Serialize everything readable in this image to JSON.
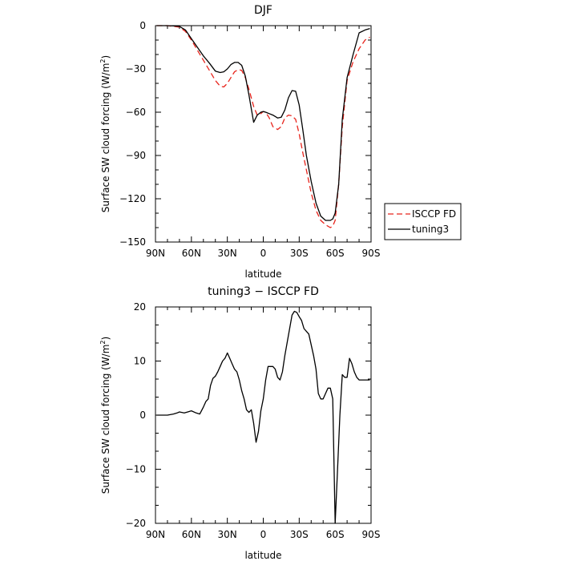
{
  "chart_data": [
    {
      "type": "line",
      "title": "DJF",
      "xlabel": "latitude",
      "ylabel": "Surface SW cloud forcing (W/m",
      "ylabel_sup": "2",
      "ylabel_end": ")",
      "xlim": [
        90,
        -90
      ],
      "ylim": [
        -150,
        0
      ],
      "x_ticks": [
        90,
        60,
        30,
        0,
        -30,
        -60,
        -90
      ],
      "x_tick_labels": [
        "90N",
        "60N",
        "30N",
        "0",
        "30S",
        "60S",
        "90S"
      ],
      "y_ticks": [
        0,
        -30,
        -60,
        -90,
        -120,
        -150
      ],
      "y_tick_labels": [
        "0",
        "−30",
        "−60",
        "−90",
        "−120",
        "−150"
      ],
      "legend_position": "right",
      "series": [
        {
          "name": "ISCCP FD",
          "color": "#e8241c",
          "dash": "dashed",
          "x": [
            89,
            85,
            80,
            75,
            70,
            65,
            60,
            55,
            50,
            45,
            40,
            36,
            33,
            30,
            27,
            24,
            21,
            18,
            15,
            12,
            8,
            5,
            2,
            0,
            -2,
            -5,
            -8,
            -12,
            -15,
            -18,
            -21,
            -24,
            -27,
            -30,
            -33,
            -36,
            -40,
            -44,
            -48,
            -52,
            -56,
            -58,
            -60,
            -63,
            -66,
            -70,
            -75,
            -80,
            -85,
            -89
          ],
          "y": [
            0,
            0,
            0,
            -0.5,
            -1,
            -4,
            -10,
            -17,
            -24,
            -31,
            -38,
            -42,
            -42.5,
            -40,
            -36,
            -32,
            -30.5,
            -31,
            -36,
            -44,
            -56,
            -62,
            -61,
            -59.5,
            -60,
            -64,
            -70,
            -72,
            -70,
            -64,
            -62,
            -62.5,
            -65,
            -75,
            -88,
            -100,
            -116,
            -128,
            -135,
            -138,
            -140,
            -139,
            -135,
            -110,
            -70,
            -38,
            -25,
            -16,
            -10,
            -8
          ]
        },
        {
          "name": "tuning3",
          "color": "#000000",
          "dash": "solid",
          "x": [
            89,
            85,
            80,
            75,
            70,
            65,
            60,
            55,
            50,
            45,
            40,
            36,
            33,
            30,
            27,
            24,
            21,
            18,
            15,
            12,
            8,
            5,
            2,
            0,
            -2,
            -5,
            -8,
            -12,
            -15,
            -18,
            -21,
            -24,
            -27,
            -30,
            -33,
            -36,
            -40,
            -44,
            -48,
            -52,
            -56,
            -58,
            -60,
            -63,
            -66,
            -70,
            -75,
            -80,
            -85,
            -89
          ],
          "y": [
            0,
            0,
            0,
            -0.2,
            -0.5,
            -3,
            -9,
            -15,
            -21,
            -26,
            -31.5,
            -32.5,
            -32,
            -30,
            -27,
            -25.5,
            -25.5,
            -27.5,
            -35,
            -48,
            -67,
            -62,
            -60,
            -59.5,
            -60,
            -61,
            -62,
            -64,
            -63.5,
            -58.5,
            -50,
            -45,
            -45.5,
            -55,
            -72,
            -90,
            -108,
            -123,
            -132,
            -135,
            -135,
            -134,
            -130,
            -110,
            -65,
            -36,
            -20,
            -5,
            -3,
            -2
          ]
        }
      ]
    },
    {
      "type": "line",
      "title": "tuning3 − ISCCP FD",
      "xlabel": "latitude",
      "ylabel": "Surface SW cloud forcing (W/m",
      "ylabel_sup": "2",
      "ylabel_end": ")",
      "xlim": [
        90,
        -90
      ],
      "ylim": [
        -20,
        20
      ],
      "x_ticks": [
        90,
        60,
        30,
        0,
        -30,
        -60,
        -90
      ],
      "x_tick_labels": [
        "90N",
        "60N",
        "30N",
        "0",
        "30S",
        "60S",
        "90S"
      ],
      "y_ticks": [
        20,
        10,
        0,
        -10,
        -20
      ],
      "y_tick_labels": [
        "20",
        "10",
        "0",
        "−10",
        "−20"
      ],
      "series": [
        {
          "name": "",
          "color": "#000000",
          "dash": "solid",
          "x": [
            89,
            85,
            80,
            75,
            72,
            70,
            66,
            63,
            60,
            56,
            53,
            50,
            48,
            46,
            44,
            42,
            40,
            38,
            36,
            34,
            32,
            30,
            28,
            26,
            24,
            22,
            20,
            18,
            16,
            14,
            12,
            10,
            8,
            6,
            4,
            2,
            0,
            -2,
            -4,
            -6,
            -8,
            -10,
            -12,
            -14,
            -16,
            -18,
            -20,
            -22,
            -24,
            -26,
            -28,
            -30,
            -32,
            -34,
            -36,
            -38,
            -40,
            -42,
            -44,
            -46,
            -48,
            -50,
            -52,
            -54,
            -56,
            -58,
            -60,
            -62,
            -64,
            -66,
            -68,
            -70,
            -72,
            -74,
            -76,
            -78,
            -80,
            -82,
            -84,
            -86,
            -89
          ],
          "y": [
            0,
            0,
            0,
            0.2,
            0.4,
            0.6,
            0.4,
            0.6,
            0.8,
            0.4,
            0.2,
            1.5,
            2.5,
            3,
            5.5,
            6.8,
            7.2,
            8,
            9,
            10,
            10.5,
            11.5,
            10.5,
            9.5,
            8.5,
            8,
            6.5,
            4.5,
            3,
            1,
            0.5,
            1,
            -1.5,
            -5,
            -3,
            0.8,
            3,
            6.5,
            9,
            9,
            9,
            8.5,
            7,
            6.5,
            8,
            11,
            13.5,
            16,
            18.5,
            19.2,
            19,
            18.2,
            17.5,
            16,
            15.5,
            15,
            13,
            11,
            8.5,
            4,
            3,
            3,
            4,
            5,
            5,
            3,
            -20,
            -10,
            0,
            7.5,
            7,
            7,
            10.5,
            9.5,
            8,
            7,
            6.5,
            6.5,
            6.5,
            6.5,
            6.5
          ]
        }
      ]
    }
  ]
}
